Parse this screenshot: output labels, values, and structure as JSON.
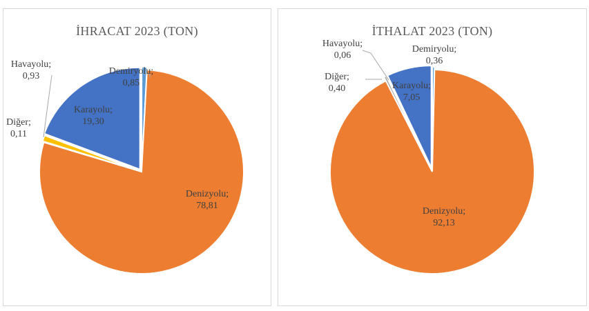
{
  "chart_data": [
    {
      "type": "pie",
      "title": "İHRACAT 2023 (TON)",
      "start_angle_deg": 0,
      "slices": [
        {
          "name": "Demiryolu",
          "value": 0.85,
          "label": "0,85",
          "color": "#5B9BD5"
        },
        {
          "name": "Denizyolu",
          "value": 78.81,
          "label": "78,81",
          "color": "#ED7D31"
        },
        {
          "name": "Diğer",
          "value": 0.11,
          "label": "0,11",
          "color": "#A5A5A5"
        },
        {
          "name": "Havayolu",
          "value": 0.93,
          "label": "0,93",
          "color": "#FFC000"
        },
        {
          "name": "Karayolu",
          "value": 19.3,
          "label": "19,30",
          "color": "#4472C4"
        }
      ]
    },
    {
      "type": "pie",
      "title": "İTHALAT 2023 (TON)",
      "start_angle_deg": 0,
      "slices": [
        {
          "name": "Demiryolu",
          "value": 0.36,
          "label": "0,36",
          "color": "#5B9BD5"
        },
        {
          "name": "Denizyolu",
          "value": 92.13,
          "label": "92,13",
          "color": "#ED7D31"
        },
        {
          "name": "Diğer",
          "value": 0.4,
          "label": "0,40",
          "color": "#A5A5A5"
        },
        {
          "name": "Havayolu",
          "value": 0.06,
          "label": "0,06",
          "color": "#FFC000"
        },
        {
          "name": "Karayolu",
          "value": 7.05,
          "label": "7,05",
          "color": "#4472C4"
        }
      ]
    }
  ]
}
